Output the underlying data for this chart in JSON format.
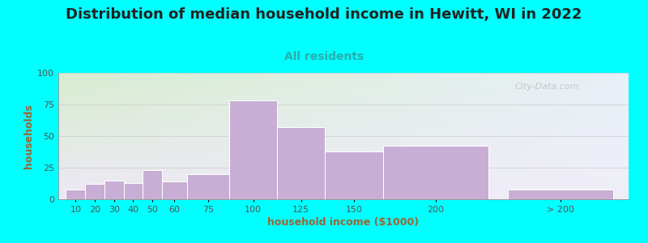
{
  "title": "Distribution of median household income in Hewitt, WI in 2022",
  "subtitle": "All residents",
  "xlabel": "household income ($1000)",
  "ylabel": "households",
  "bar_labels": [
    "10",
    "20",
    "30",
    "40",
    "50",
    "60",
    "75",
    "100",
    "125",
    "150",
    "200",
    "> 200"
  ],
  "bar_values": [
    8,
    12,
    15,
    13,
    23,
    14,
    20,
    78,
    57,
    38,
    42,
    8
  ],
  "bar_lefts": [
    2,
    12,
    22,
    32,
    42,
    52,
    65,
    87,
    112,
    137,
    167,
    232
  ],
  "bar_widths": [
    10,
    10,
    10,
    10,
    10,
    13,
    22,
    25,
    25,
    30,
    55,
    55
  ],
  "bar_color": "#c8aed4",
  "bar_edgecolor": "#ffffff",
  "ylim": [
    0,
    100
  ],
  "yticks": [
    0,
    25,
    50,
    75,
    100
  ],
  "xlim_left": -2,
  "xlim_right": 295,
  "bg_color": "#00ffff",
  "grad_color_topleft": "#d8edcf",
  "grad_color_topright": "#e8f0f8",
  "grad_color_bottom": "#ede8f5",
  "title_fontsize": 13,
  "subtitle_fontsize": 10,
  "label_fontsize": 9,
  "tick_fontsize": 8,
  "title_color": "#222222",
  "subtitle_color": "#2aadad",
  "axis_label_color": "#996633",
  "tick_color": "#555555",
  "watermark": "City-Data.com",
  "watermark_color": "#bbbbbb"
}
